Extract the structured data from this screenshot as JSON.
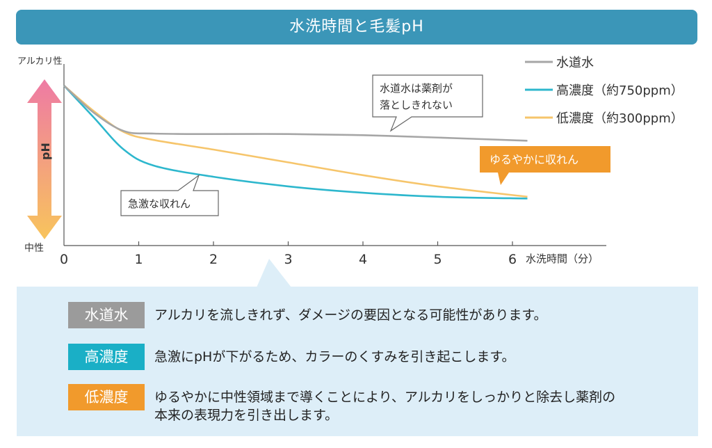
{
  "header": {
    "title": "水洗時間と毛髪pH"
  },
  "chart_data": {
    "type": "line",
    "ylabel_top": "アルカリ性",
    "ylabel_bottom": "中性",
    "ylabel_center": "pH",
    "xlabel": "水洗時間（分）",
    "x_ticks": [
      "0",
      "1",
      "2",
      "3",
      "4",
      "5",
      "6"
    ],
    "xlim": [
      0,
      6.3
    ],
    "ylim": [
      0,
      1
    ],
    "series": [
      {
        "name": "水道水",
        "color": "#a6a6a6",
        "x": [
          0,
          0.4,
          0.8,
          1.2,
          2,
          3,
          4,
          5,
          6.2
        ],
        "y": [
          1.0,
          0.83,
          0.716,
          0.7,
          0.697,
          0.697,
          0.69,
          0.675,
          0.655
        ]
      },
      {
        "name": "高濃度（約750ppm）",
        "color": "#2db7cd",
        "x": [
          0,
          0.4,
          0.8,
          1.2,
          2,
          3,
          4,
          5,
          6.2
        ],
        "y": [
          1.0,
          0.8,
          0.6,
          0.5,
          0.43,
          0.37,
          0.33,
          0.305,
          0.294
        ]
      },
      {
        "name": "低濃度（約300ppm）",
        "color": "#f6c56b",
        "x": [
          0,
          0.4,
          0.8,
          1.2,
          2,
          3,
          4,
          5,
          6.2
        ],
        "y": [
          1.0,
          0.84,
          0.71,
          0.66,
          0.6,
          0.52,
          0.44,
          0.37,
          0.305
        ]
      }
    ],
    "annotations": {
      "tap": "水道水は薬剤が\n落としきれない",
      "high": "急激な収れん",
      "low": "ゆるやかに収れん"
    }
  },
  "legend": [
    {
      "label": "水道水",
      "color": "#a6a6a6"
    },
    {
      "label": "高濃度（約750ppm）",
      "color": "#2db7cd"
    },
    {
      "label": "低濃度（約300ppm）",
      "color": "#f6c56b"
    }
  ],
  "rows": [
    {
      "badge": "水道水",
      "color": "#9b9b9b",
      "text": "アルカリを流しきれず、ダメージの要因となる可能性があります。"
    },
    {
      "badge": "高濃度",
      "color": "#1aafc6",
      "text": "急激にpHが下がるため、カラーのくすみを引き起こします。"
    },
    {
      "badge": "低濃度",
      "color": "#f19a2c",
      "text": "ゆるやかに中性領域まで導くことにより、アルカリをしっかりと除去し薬剤の本来の表現力を引き出します。"
    }
  ]
}
